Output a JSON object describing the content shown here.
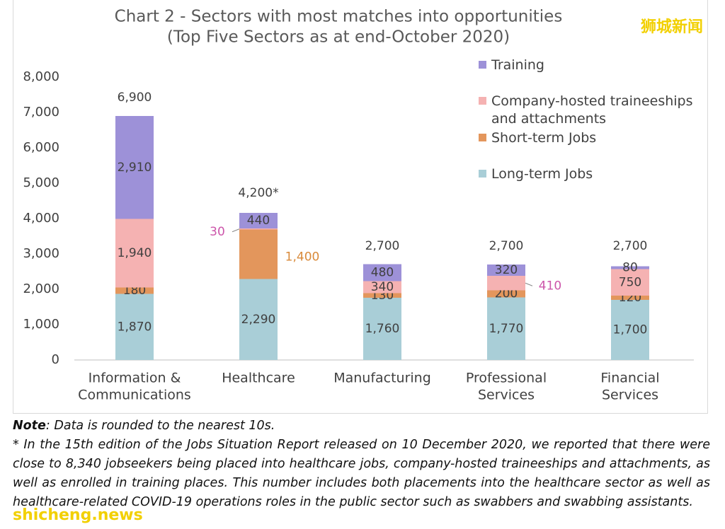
{
  "chart_data": {
    "type": "stacked-bar",
    "title": "Chart 2 - Sectors with most matches into opportunities",
    "subtitle": "(Top Five Sectors as at end-October 2020)",
    "categories": [
      [
        "Information &",
        "Communications"
      ],
      [
        "Healthcare"
      ],
      [
        "Manufacturing"
      ],
      [
        "Professional",
        "Services"
      ],
      [
        "Financial",
        "Services"
      ]
    ],
    "series": [
      {
        "name": "Long-term Jobs",
        "color": "#a9ced7",
        "values": [
          1870,
          2290,
          1760,
          1770,
          1700
        ],
        "value_labels": [
          "1,870",
          "2,290",
          "1,760",
          "1,770",
          "1,700"
        ]
      },
      {
        "name": "Short-term Jobs",
        "color": "#e3965c",
        "values": [
          180,
          1400,
          130,
          200,
          120
        ],
        "value_labels": [
          "180",
          "1,400",
          "130",
          "200",
          "120"
        ]
      },
      {
        "name": "Company-hosted traineeships and attachments",
        "color": "#f5b2b2",
        "values": [
          1940,
          30,
          340,
          410,
          750
        ],
        "value_labels": [
          "1,940",
          "30",
          "340",
          "410",
          "750"
        ]
      },
      {
        "name": "Training",
        "color": "#9d91d8",
        "values": [
          2910,
          440,
          480,
          320,
          80
        ],
        "value_labels": [
          "2,910",
          "440",
          "480",
          "320",
          "80"
        ]
      }
    ],
    "totals": {
      "values": [
        6900,
        4200,
        2700,
        2700,
        2700
      ],
      "value_labels": [
        "6,900",
        "4,200*",
        "2,700",
        "2,700",
        "2,700"
      ]
    },
    "ylim": [
      0,
      8000
    ],
    "yticks": [
      0,
      {
        "value": 1000,
        "label": "1,000"
      },
      {
        "value": 2000,
        "label": "2,000"
      },
      {
        "value": 3000,
        "label": "3,000"
      },
      {
        "value": 4000,
        "label": "4,000"
      },
      {
        "value": 5000,
        "label": "5,000"
      },
      {
        "value": 6000,
        "label": "6,000"
      },
      {
        "value": 7000,
        "label": "7,000"
      },
      {
        "value": 8000,
        "label": "8,000"
      }
    ],
    "grid": false,
    "legend": "top-right"
  },
  "notes": {
    "label": "Note",
    "text": ": Data is rounded to the nearest 10s.",
    "footnote": "* In the 15th edition of the Jobs Situation Report released on 10 December 2020, we reported that there were close to 8,340 jobseekers being placed into healthcare jobs, company-hosted traineeships and attachments, as well as enrolled in training places. This number includes both placements into the healthcare sector as well as healthcare-related COVID-19 operations roles in the public sector such as swabbers and swabbing assistants."
  },
  "watermarks": {
    "top": "狮城新闻",
    "bottom": "shicheng.news"
  }
}
